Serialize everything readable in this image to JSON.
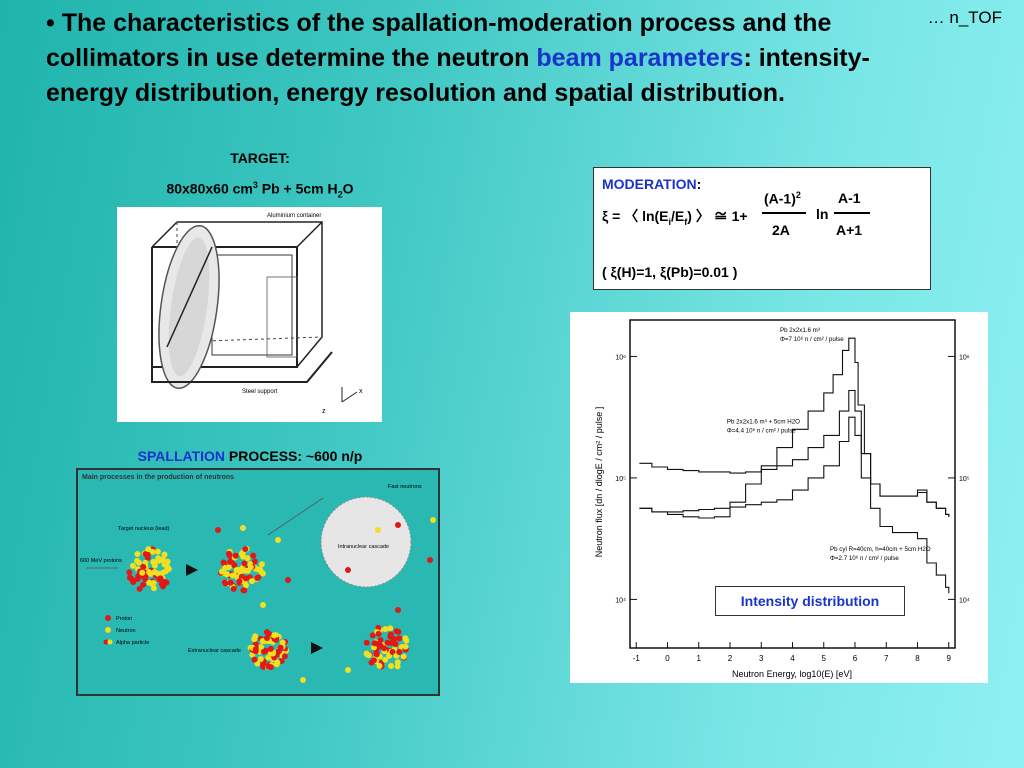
{
  "headline": {
    "bullet": "•",
    "part1": "The characteristics of the spallation-moderation process and the collimators in use determine the neutron",
    "highlight": "beam parameters",
    "part2": ": intensity- energy distribution, energy resolution and spatial distribution."
  },
  "corner_label": "… n_TOF",
  "target": {
    "heading": "TARGET:",
    "spec_prefix": "80x80x60 cm",
    "spec_sup": "3",
    "spec_mid": " Pb + 5cm H",
    "spec_sub": "2",
    "spec_suffix": "O",
    "figure_labels": {
      "container": "Aluminium container",
      "support": "Steel support",
      "x": "x",
      "z": "z"
    }
  },
  "spallation": {
    "label_highlight": "SPALLATION",
    "label_rest": " PROCESS: ~600 n/p",
    "figure": {
      "title": "Main processes in the production of neutrons",
      "target_nucleus": "Target nucleus (lead)",
      "proton_energy": "600 MeV protons",
      "intranuclear": "Intranuclear cascade",
      "fast_neutrons": "Fast neutrons",
      "extranuclear": "Extranuclear cascade",
      "legend": [
        "Proton",
        "Neutron",
        "Alpha particle"
      ]
    }
  },
  "moderation": {
    "title": "MODERATION",
    "colon": ":",
    "xi_lhs": "ξ = 〈 ln(E",
    "sub_i": "i",
    "slash_e": "/E",
    "sub_f": "f",
    "close": ") 〉 ≅ 1+",
    "num1": "(A-1)",
    "num1_sup": "2",
    "den1": "2A",
    "ln": "ln",
    "num2": "A-1",
    "den2": "A+1",
    "values": "( ξ(H)=1,   ξ(Pb)=0.01 )"
  },
  "chart_data": {
    "type": "line",
    "xlabel": "Neutron Energy, log10(E) [eV]",
    "ylabel": "Neutron flux [dn / dlogE / cm² / pulse ]",
    "x_ticks": [
      "-1",
      "0",
      "1",
      "2",
      "3",
      "4",
      "5",
      "6",
      "7",
      "8",
      "9"
    ],
    "y_ticks": [
      "10⁴",
      "10⁵",
      "10⁶"
    ],
    "xlim": [
      -1.2,
      9.2
    ],
    "ylim_log10": [
      3.6,
      6.3
    ],
    "log_y": true,
    "series": [
      {
        "name": "Pb 2x2x1.6 m³  Φ=7 10⁶ n / cm² / pulse",
        "x": [
          -0.9,
          -0.5,
          0,
          0.5,
          1,
          1.5,
          2,
          2.5,
          3,
          3.5,
          4,
          4.5,
          5,
          5.3,
          5.6,
          5.8,
          6.0,
          6.1,
          6.3,
          6.5,
          6.8,
          7.2,
          7.6,
          8.0,
          8.3,
          8.6,
          8.9,
          9.0
        ],
        "log_y": [
          4.75,
          4.72,
          4.7,
          4.68,
          4.67,
          4.68,
          4.8,
          4.95,
          5.1,
          5.25,
          5.4,
          5.55,
          5.7,
          5.85,
          6.05,
          6.15,
          5.95,
          5.6,
          5.2,
          4.95,
          4.85,
          4.85,
          4.85,
          4.88,
          4.8,
          4.75,
          4.7,
          4.68
        ]
      },
      {
        "name": "Pb 2x2x1.6 m³ + 5cm H2O  Φ=4.4 10⁶ n / cm² / pulse",
        "x": [
          -0.9,
          -0.5,
          0,
          0.5,
          1,
          1.5,
          2,
          2.5,
          3,
          3.5,
          4,
          4.5,
          5,
          5.5,
          5.8,
          6.0,
          6.2,
          6.5,
          6.8,
          7.2,
          7.6,
          8.0,
          8.3,
          8.6,
          8.9,
          9.0
        ],
        "log_y": [
          5.12,
          5.09,
          5.07,
          5.06,
          5.05,
          5.05,
          5.04,
          5.05,
          5.07,
          5.1,
          5.15,
          5.25,
          5.35,
          5.55,
          5.72,
          5.55,
          5.2,
          4.95,
          4.85,
          4.85,
          4.85,
          4.9,
          4.8,
          4.75,
          4.7,
          4.68
        ]
      },
      {
        "name": "Pb cyl R=40cm, h=40cm + 5cm H2O  Φ=2.7 10⁶ n / cm² / pulse",
        "x": [
          -0.9,
          -0.5,
          0,
          0.5,
          1,
          1.5,
          2,
          2.5,
          3,
          3.5,
          4,
          4.5,
          5,
          5.5,
          5.8,
          6.0,
          6.2,
          6.5,
          6.8,
          7.2,
          7.6,
          8.0,
          8.3,
          8.6,
          8.9,
          9.0
        ],
        "log_y": [
          4.75,
          4.72,
          4.72,
          4.73,
          4.74,
          4.75,
          4.76,
          4.78,
          4.8,
          4.82,
          4.9,
          5.0,
          5.1,
          5.3,
          5.5,
          5.35,
          5.0,
          4.75,
          4.6,
          4.55,
          4.55,
          4.5,
          4.3,
          4.2,
          4.1,
          4.05
        ]
      }
    ]
  },
  "intensity_label": "Intensity distribution",
  "colors": {
    "accent": "#1a33cc",
    "background_start": "#1fb3ac",
    "background_end": "#8ff0f2",
    "proton": "#e01818",
    "neutron": "#f0e020"
  }
}
